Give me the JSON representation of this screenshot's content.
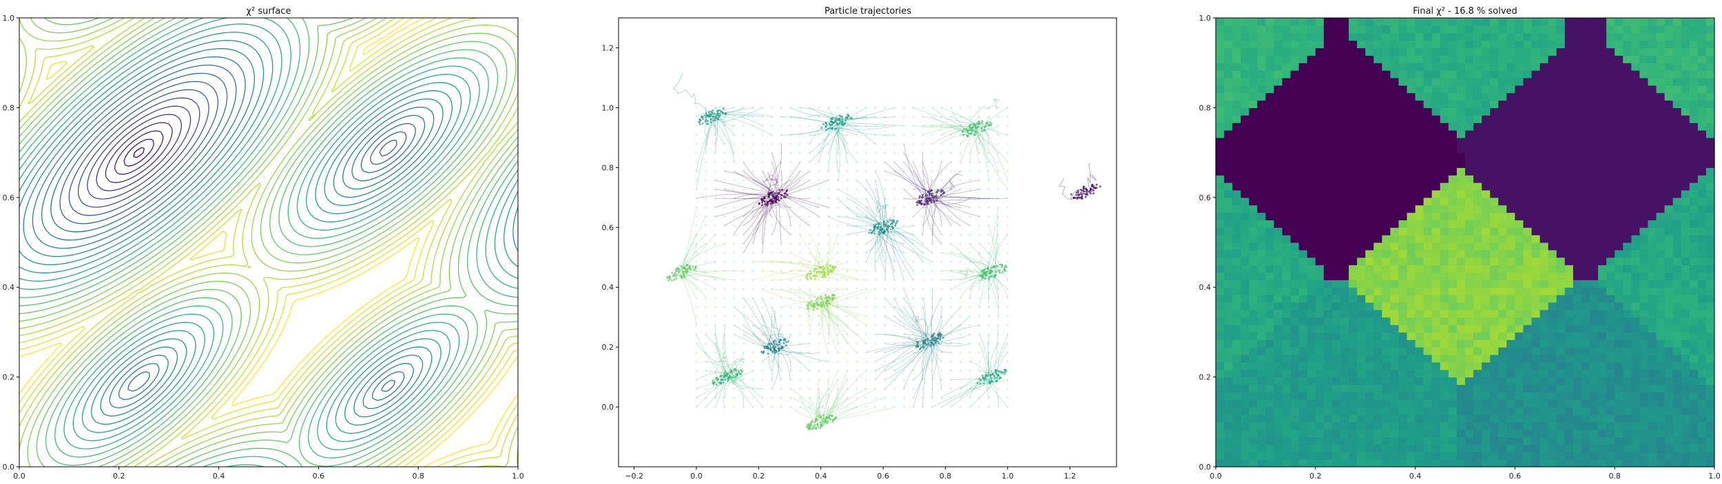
{
  "chart_data": [
    {
      "type": "contour",
      "title": "χ² surface",
      "xlabel": "",
      "ylabel": "",
      "xlim": [
        0,
        1
      ],
      "ylim": [
        0,
        1
      ],
      "xticks": [
        "0.0",
        "0.2",
        "0.4",
        "0.6",
        "0.8",
        "1.0"
      ],
      "yticks": [
        "0.0",
        "0.2",
        "0.4",
        "0.6",
        "0.8",
        "1.0"
      ],
      "colormap": "viridis",
      "minima": [
        {
          "x": 0.24,
          "y": 0.7,
          "depth": 0.0
        },
        {
          "x": 0.74,
          "y": 0.71,
          "depth": 0.3
        },
        {
          "x": 0.24,
          "y": 0.19,
          "depth": 0.38
        },
        {
          "x": 0.74,
          "y": 0.18,
          "depth": 0.4
        }
      ]
    },
    {
      "type": "scatter",
      "title": "Particle trajectories",
      "xlabel": "",
      "ylabel": "",
      "xlim": [
        -0.25,
        1.35
      ],
      "ylim": [
        -0.2,
        1.3
      ],
      "xticks": [
        "−0.2",
        "0.0",
        "0.2",
        "0.4",
        "0.6",
        "0.8",
        "1.0",
        "1.2"
      ],
      "yticks": [
        "0.0",
        "0.2",
        "0.4",
        "0.6",
        "0.8",
        "1.0",
        "1.2"
      ],
      "grid_start": {
        "xlim": [
          0,
          1
        ],
        "ylim": [
          0,
          1
        ]
      },
      "clusters": [
        {
          "x": 0.25,
          "y": 0.7,
          "level": 0.0
        },
        {
          "x": 0.75,
          "y": 0.7,
          "level": 0.1
        },
        {
          "x": 1.25,
          "y": 0.72,
          "level": 0.05
        },
        {
          "x": 0.25,
          "y": 0.2,
          "level": 0.45
        },
        {
          "x": 0.75,
          "y": 0.22,
          "level": 0.45
        },
        {
          "x": 0.4,
          "y": 0.45,
          "level": 0.85
        },
        {
          "x": 0.4,
          "y": 0.35,
          "level": 0.8
        },
        {
          "x": 0.6,
          "y": 0.6,
          "level": 0.5
        },
        {
          "x": 0.45,
          "y": 0.95,
          "level": 0.55
        },
        {
          "x": 0.05,
          "y": 0.97,
          "level": 0.55
        },
        {
          "x": 0.95,
          "y": 0.45,
          "level": 0.7
        },
        {
          "x": 0.9,
          "y": 0.93,
          "level": 0.7
        },
        {
          "x": 0.1,
          "y": 0.1,
          "level": 0.65
        },
        {
          "x": 0.95,
          "y": 0.1,
          "level": 0.6
        },
        {
          "x": 0.4,
          "y": -0.05,
          "level": 0.75
        },
        {
          "x": -0.05,
          "y": 0.45,
          "level": 0.75
        }
      ]
    },
    {
      "type": "heatmap",
      "title": "Final χ² - 16.8 % solved",
      "xlabel": "",
      "ylabel": "",
      "xlim": [
        0,
        1
      ],
      "ylim": [
        0,
        1
      ],
      "xticks": [
        "0.0",
        "0.2",
        "0.4",
        "0.6",
        "0.8",
        "1.0"
      ],
      "yticks": [
        "0.0",
        "0.2",
        "0.4",
        "0.6",
        "0.8",
        "1.0"
      ],
      "colormap": "viridis"
    }
  ]
}
